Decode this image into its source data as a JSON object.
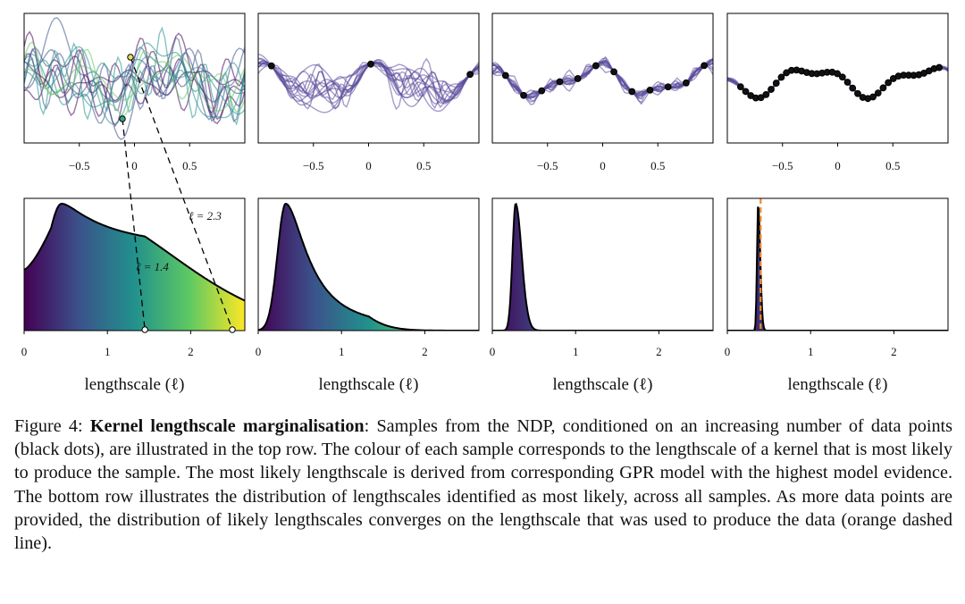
{
  "figure": {
    "top_row": {
      "x_tick_labels": [
        "−0.5",
        "0",
        "0.5"
      ],
      "x_tick_values": [
        -0.5,
        0,
        0.5
      ],
      "x_range": [
        -1,
        1
      ]
    },
    "bottom_row": {
      "x_tick_labels": [
        "0",
        "1",
        "2"
      ],
      "x_tick_values": [
        0,
        1,
        2
      ],
      "x_range": [
        0,
        2.65
      ],
      "xlabel": "lengthscale (ℓ)"
    },
    "annotations": [
      {
        "label": "ℓ = 2.3",
        "lengthscale": 2.3
      },
      {
        "label": "ℓ = 1.4",
        "lengthscale": 1.4
      }
    ],
    "colors": {
      "viridis": [
        "#440154",
        "#3b528b",
        "#21918c",
        "#5ec962",
        "#fde725"
      ],
      "sample_line": "#5b4a9b",
      "true_lengthscale": "#f08a24"
    }
  },
  "chart_data": [
    {
      "type": "line",
      "title": "",
      "panel": "top-1",
      "conditioning_points": 0,
      "xlim": [
        -1,
        1
      ]
    },
    {
      "type": "line",
      "title": "",
      "panel": "top-2",
      "conditioning_points": 3,
      "xlim": [
        -1,
        1
      ]
    },
    {
      "type": "line",
      "title": "",
      "panel": "top-3",
      "conditioning_points": 12,
      "xlim": [
        -1,
        1
      ]
    },
    {
      "type": "line",
      "title": "",
      "panel": "top-4",
      "conditioning_points": 40,
      "xlim": [
        -1,
        1
      ]
    },
    {
      "type": "area",
      "panel": "bottom-1",
      "xlabel": "lengthscale (ℓ)",
      "mode": 0.5,
      "xlim": [
        0,
        2.65
      ]
    },
    {
      "type": "area",
      "panel": "bottom-2",
      "xlabel": "lengthscale (ℓ)",
      "mode": 0.35,
      "xlim": [
        0,
        2.65
      ]
    },
    {
      "type": "area",
      "panel": "bottom-3",
      "xlabel": "lengthscale (ℓ)",
      "mode": 0.3,
      "xlim": [
        0,
        2.65
      ]
    },
    {
      "type": "area",
      "panel": "bottom-4",
      "xlabel": "lengthscale (ℓ)",
      "mode": 0.38,
      "true_lengthscale": 0.4,
      "xlim": [
        0,
        2.65
      ]
    }
  ],
  "caption": {
    "label": "Figure 4:",
    "title": "Kernel lengthscale marginalisation",
    "body": ": Samples from the NDP, conditioned on an increasing number of data points (black dots), are illustrated in the top row.  The colour of each sample corresponds to the lengthscale of a kernel that is most likely to produce the sample. The most likely lengthscale is derived from corresponding GPR model with the highest model evidence. The bottom row illustrates the distribution of lengthscales identified as most likely, across all samples. As more data points are provided, the distribution of likely lengthscales converges on the lengthscale that was used to produce the data (orange dashed line)."
  }
}
